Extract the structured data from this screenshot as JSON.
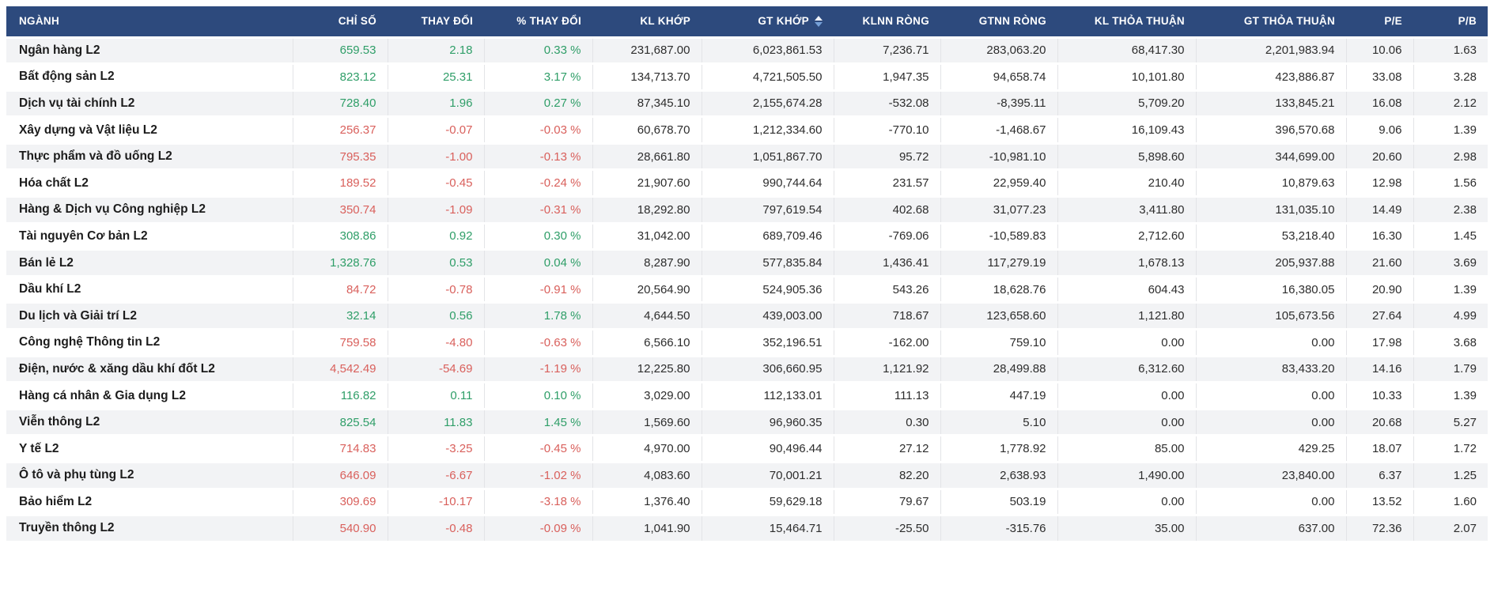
{
  "colors": {
    "header_bg": "#2d4a7d",
    "up": "#2f9e68",
    "down": "#d9605c",
    "row_alt": "#f2f3f5",
    "sort_arrow_up": "#eef2f9",
    "sort_arrow_down": "#76a1d8"
  },
  "table": {
    "sorted_by": "gt_khop",
    "columns": [
      {
        "key": "name",
        "label": "NGÀNH"
      },
      {
        "key": "chi_so",
        "label": "CHỈ SỐ"
      },
      {
        "key": "thay_doi",
        "label": "THAY ĐỔI"
      },
      {
        "key": "pct",
        "label": "% THAY ĐỔI"
      },
      {
        "key": "kl_khop",
        "label": "KL KHỚP"
      },
      {
        "key": "gt_khop",
        "label": "GT KHỚP",
        "sorted": true
      },
      {
        "key": "klnn_rong",
        "label": "KLNN RÒNG"
      },
      {
        "key": "gtnn_rong",
        "label": "GTNN RÒNG"
      },
      {
        "key": "kl_thoa_thuan",
        "label": "KL THỎA THUẬN"
      },
      {
        "key": "gt_thoa_thuan",
        "label": "GT THỎA THUẬN"
      },
      {
        "key": "pe",
        "label": "P/E"
      },
      {
        "key": "pb",
        "label": "P/B"
      }
    ],
    "rows": [
      {
        "name": "Ngân hàng L2",
        "trend": "up",
        "chi_so": "659.53",
        "thay_doi": "2.18",
        "pct": "0.33 %",
        "kl_khop": "231,687.00",
        "gt_khop": "6,023,861.53",
        "klnn_rong": "7,236.71",
        "gtnn_rong": "283,063.20",
        "kl_thoa_thuan": "68,417.30",
        "gt_thoa_thuan": "2,201,983.94",
        "pe": "10.06",
        "pb": "1.63"
      },
      {
        "name": "Bất động sản L2",
        "trend": "up",
        "chi_so": "823.12",
        "thay_doi": "25.31",
        "pct": "3.17 %",
        "kl_khop": "134,713.70",
        "gt_khop": "4,721,505.50",
        "klnn_rong": "1,947.35",
        "gtnn_rong": "94,658.74",
        "kl_thoa_thuan": "10,101.80",
        "gt_thoa_thuan": "423,886.87",
        "pe": "33.08",
        "pb": "3.28"
      },
      {
        "name": "Dịch vụ tài chính L2",
        "trend": "up",
        "chi_so": "728.40",
        "thay_doi": "1.96",
        "pct": "0.27 %",
        "kl_khop": "87,345.10",
        "gt_khop": "2,155,674.28",
        "klnn_rong": "-532.08",
        "gtnn_rong": "-8,395.11",
        "kl_thoa_thuan": "5,709.20",
        "gt_thoa_thuan": "133,845.21",
        "pe": "16.08",
        "pb": "2.12"
      },
      {
        "name": "Xây dựng và Vật liệu L2",
        "trend": "down",
        "chi_so": "256.37",
        "thay_doi": "-0.07",
        "pct": "-0.03 %",
        "kl_khop": "60,678.70",
        "gt_khop": "1,212,334.60",
        "klnn_rong": "-770.10",
        "gtnn_rong": "-1,468.67",
        "kl_thoa_thuan": "16,109.43",
        "gt_thoa_thuan": "396,570.68",
        "pe": "9.06",
        "pb": "1.39"
      },
      {
        "name": "Thực phẩm và đồ uống L2",
        "trend": "down",
        "chi_so": "795.35",
        "thay_doi": "-1.00",
        "pct": "-0.13 %",
        "kl_khop": "28,661.80",
        "gt_khop": "1,051,867.70",
        "klnn_rong": "95.72",
        "gtnn_rong": "-10,981.10",
        "kl_thoa_thuan": "5,898.60",
        "gt_thoa_thuan": "344,699.00",
        "pe": "20.60",
        "pb": "2.98"
      },
      {
        "name": "Hóa chất L2",
        "trend": "down",
        "chi_so": "189.52",
        "thay_doi": "-0.45",
        "pct": "-0.24 %",
        "kl_khop": "21,907.60",
        "gt_khop": "990,744.64",
        "klnn_rong": "231.57",
        "gtnn_rong": "22,959.40",
        "kl_thoa_thuan": "210.40",
        "gt_thoa_thuan": "10,879.63",
        "pe": "12.98",
        "pb": "1.56"
      },
      {
        "name": "Hàng & Dịch vụ Công nghiệp L2",
        "trend": "down",
        "chi_so": "350.74",
        "thay_doi": "-1.09",
        "pct": "-0.31 %",
        "kl_khop": "18,292.80",
        "gt_khop": "797,619.54",
        "klnn_rong": "402.68",
        "gtnn_rong": "31,077.23",
        "kl_thoa_thuan": "3,411.80",
        "gt_thoa_thuan": "131,035.10",
        "pe": "14.49",
        "pb": "2.38"
      },
      {
        "name": "Tài nguyên Cơ bản L2",
        "trend": "up",
        "chi_so": "308.86",
        "thay_doi": "0.92",
        "pct": "0.30 %",
        "kl_khop": "31,042.00",
        "gt_khop": "689,709.46",
        "klnn_rong": "-769.06",
        "gtnn_rong": "-10,589.83",
        "kl_thoa_thuan": "2,712.60",
        "gt_thoa_thuan": "53,218.40",
        "pe": "16.30",
        "pb": "1.45"
      },
      {
        "name": "Bán lẻ L2",
        "trend": "up",
        "chi_so": "1,328.76",
        "thay_doi": "0.53",
        "pct": "0.04 %",
        "kl_khop": "8,287.90",
        "gt_khop": "577,835.84",
        "klnn_rong": "1,436.41",
        "gtnn_rong": "117,279.19",
        "kl_thoa_thuan": "1,678.13",
        "gt_thoa_thuan": "205,937.88",
        "pe": "21.60",
        "pb": "3.69"
      },
      {
        "name": "Dầu khí L2",
        "trend": "down",
        "chi_so": "84.72",
        "thay_doi": "-0.78",
        "pct": "-0.91 %",
        "kl_khop": "20,564.90",
        "gt_khop": "524,905.36",
        "klnn_rong": "543.26",
        "gtnn_rong": "18,628.76",
        "kl_thoa_thuan": "604.43",
        "gt_thoa_thuan": "16,380.05",
        "pe": "20.90",
        "pb": "1.39"
      },
      {
        "name": "Du lịch và Giải trí L2",
        "trend": "up",
        "chi_so": "32.14",
        "thay_doi": "0.56",
        "pct": "1.78 %",
        "kl_khop": "4,644.50",
        "gt_khop": "439,003.00",
        "klnn_rong": "718.67",
        "gtnn_rong": "123,658.60",
        "kl_thoa_thuan": "1,121.80",
        "gt_thoa_thuan": "105,673.56",
        "pe": "27.64",
        "pb": "4.99"
      },
      {
        "name": "Công nghệ Thông tin L2",
        "trend": "down",
        "chi_so": "759.58",
        "thay_doi": "-4.80",
        "pct": "-0.63 %",
        "kl_khop": "6,566.10",
        "gt_khop": "352,196.51",
        "klnn_rong": "-162.00",
        "gtnn_rong": "759.10",
        "kl_thoa_thuan": "0.00",
        "gt_thoa_thuan": "0.00",
        "pe": "17.98",
        "pb": "3.68"
      },
      {
        "name": "Điện, nước & xăng dầu khí đốt L2",
        "trend": "down",
        "chi_so": "4,542.49",
        "thay_doi": "-54.69",
        "pct": "-1.19 %",
        "kl_khop": "12,225.80",
        "gt_khop": "306,660.95",
        "klnn_rong": "1,121.92",
        "gtnn_rong": "28,499.88",
        "kl_thoa_thuan": "6,312.60",
        "gt_thoa_thuan": "83,433.20",
        "pe": "14.16",
        "pb": "1.79"
      },
      {
        "name": "Hàng cá nhân & Gia dụng L2",
        "trend": "up",
        "chi_so": "116.82",
        "thay_doi": "0.11",
        "pct": "0.10 %",
        "kl_khop": "3,029.00",
        "gt_khop": "112,133.01",
        "klnn_rong": "111.13",
        "gtnn_rong": "447.19",
        "kl_thoa_thuan": "0.00",
        "gt_thoa_thuan": "0.00",
        "pe": "10.33",
        "pb": "1.39"
      },
      {
        "name": "Viễn thông L2",
        "trend": "up",
        "chi_so": "825.54",
        "thay_doi": "11.83",
        "pct": "1.45 %",
        "kl_khop": "1,569.60",
        "gt_khop": "96,960.35",
        "klnn_rong": "0.30",
        "gtnn_rong": "5.10",
        "kl_thoa_thuan": "0.00",
        "gt_thoa_thuan": "0.00",
        "pe": "20.68",
        "pb": "5.27"
      },
      {
        "name": "Y tế L2",
        "trend": "down",
        "chi_so": "714.83",
        "thay_doi": "-3.25",
        "pct": "-0.45 %",
        "kl_khop": "4,970.00",
        "gt_khop": "90,496.44",
        "klnn_rong": "27.12",
        "gtnn_rong": "1,778.92",
        "kl_thoa_thuan": "85.00",
        "gt_thoa_thuan": "429.25",
        "pe": "18.07",
        "pb": "1.72"
      },
      {
        "name": "Ô tô và phụ tùng L2",
        "trend": "down",
        "chi_so": "646.09",
        "thay_doi": "-6.67",
        "pct": "-1.02 %",
        "kl_khop": "4,083.60",
        "gt_khop": "70,001.21",
        "klnn_rong": "82.20",
        "gtnn_rong": "2,638.93",
        "kl_thoa_thuan": "1,490.00",
        "gt_thoa_thuan": "23,840.00",
        "pe": "6.37",
        "pb": "1.25"
      },
      {
        "name": "Bảo hiểm L2",
        "trend": "down",
        "chi_so": "309.69",
        "thay_doi": "-10.17",
        "pct": "-3.18 %",
        "kl_khop": "1,376.40",
        "gt_khop": "59,629.18",
        "klnn_rong": "79.67",
        "gtnn_rong": "503.19",
        "kl_thoa_thuan": "0.00",
        "gt_thoa_thuan": "0.00",
        "pe": "13.52",
        "pb": "1.60"
      },
      {
        "name": "Truyền thông L2",
        "trend": "down",
        "chi_so": "540.90",
        "thay_doi": "-0.48",
        "pct": "-0.09 %",
        "kl_khop": "1,041.90",
        "gt_khop": "15,464.71",
        "klnn_rong": "-25.50",
        "gtnn_rong": "-315.76",
        "kl_thoa_thuan": "35.00",
        "gt_thoa_thuan": "637.00",
        "pe": "72.36",
        "pb": "2.07"
      }
    ]
  }
}
